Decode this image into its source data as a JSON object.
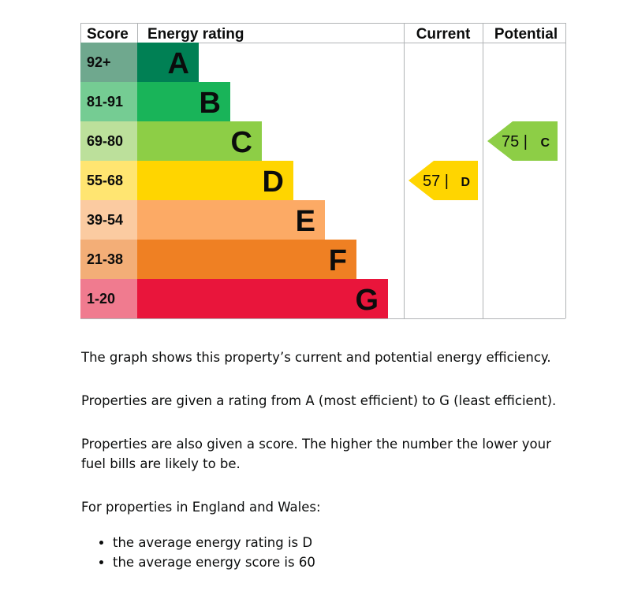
{
  "chart_data": {
    "type": "bar",
    "title": "",
    "headers": {
      "score": "Score",
      "rating": "Energy rating",
      "current": "Current",
      "potential": "Potential"
    },
    "bands": [
      {
        "letter": "A",
        "range": "92+",
        "color": "#008054",
        "score_bg": "#6fa88e"
      },
      {
        "letter": "B",
        "range": "81-91",
        "color": "#19b459",
        "score_bg": "#75cc93"
      },
      {
        "letter": "C",
        "range": "69-80",
        "color": "#8dce46",
        "score_bg": "#bce09b"
      },
      {
        "letter": "D",
        "range": "55-68",
        "color": "#ffd500",
        "score_bg": "#ffe571"
      },
      {
        "letter": "E",
        "range": "39-54",
        "color": "#fcaa65",
        "score_bg": "#fbcba1"
      },
      {
        "letter": "F",
        "range": "21-38",
        "color": "#ef8023",
        "score_bg": "#f3ae77"
      },
      {
        "letter": "G",
        "range": "1-20",
        "color": "#e9153b",
        "score_bg": "#f07b8f"
      }
    ],
    "current": {
      "score": 57,
      "letter": "D",
      "label": "57 |",
      "band_index": 3
    },
    "potential": {
      "score": 75,
      "letter": "C",
      "label": "75 |",
      "band_index": 2
    }
  },
  "description": {
    "p1": "The graph shows this property’s current and potential energy efficiency.",
    "p2": "Properties are given a rating from A (most efficient) to G (least efficient).",
    "p3": "Properties are also given a score. The higher the number the lower your fuel bills are likely to be.",
    "p4": "For properties in England and Wales:",
    "bullets": [
      "the average energy rating is D",
      "the average energy score is 60"
    ]
  },
  "colors": {
    "grid": "#b1b4b6",
    "text": "#0b0c0c"
  }
}
